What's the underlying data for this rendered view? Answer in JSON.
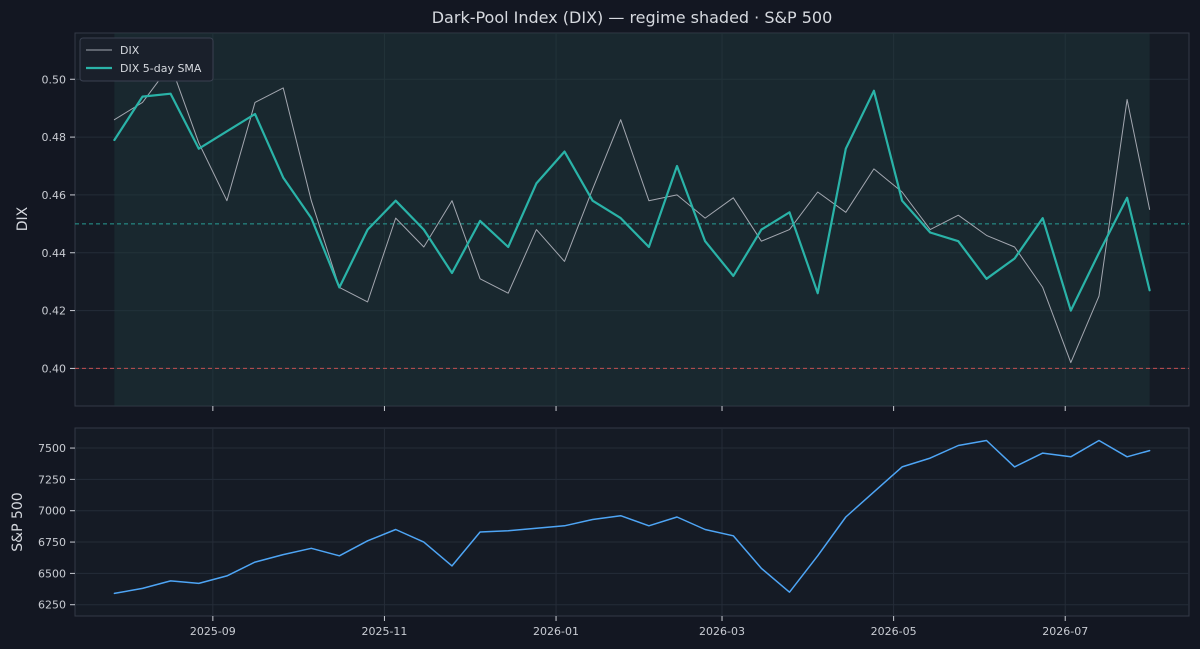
{
  "chart_data": [
    {
      "type": "line",
      "title": "Dark-Pool Index (DIX) — regime shaded · S&P 500",
      "ylabel": "DIX",
      "ylim": [
        0.387,
        0.516
      ],
      "yticks": [
        0.4,
        0.42,
        0.44,
        0.46,
        0.48,
        0.5
      ],
      "ytick_labels": [
        "0.40",
        "0.42",
        "0.44",
        "0.46",
        "0.48",
        "0.50"
      ],
      "reference_lines": [
        {
          "y": 0.45,
          "color": "#2ab3a8",
          "style": "dashed"
        },
        {
          "y": 0.4,
          "color": "#e05555",
          "style": "dashed"
        }
      ],
      "shaded_regime": {
        "from": "2025-07-28",
        "to": "2026-07-31"
      },
      "legend": {
        "placement": "top-left",
        "entries": [
          "DIX",
          "DIX 5-day SMA"
        ]
      },
      "grid": true,
      "x": [
        "2025-07-28",
        "2025-08-07",
        "2025-08-17",
        "2025-08-27",
        "2025-09-06",
        "2025-09-16",
        "2025-09-26",
        "2025-10-06",
        "2025-10-16",
        "2025-10-26",
        "2025-11-05",
        "2025-11-15",
        "2025-11-25",
        "2025-12-05",
        "2025-12-15",
        "2025-12-25",
        "2026-01-04",
        "2026-01-14",
        "2026-01-24",
        "2026-02-03",
        "2026-02-13",
        "2026-02-23",
        "2026-03-05",
        "2026-03-15",
        "2026-03-25",
        "2026-04-04",
        "2026-04-14",
        "2026-04-24",
        "2026-05-04",
        "2026-05-14",
        "2026-05-24",
        "2026-06-03",
        "2026-06-13",
        "2026-06-23",
        "2026-07-03",
        "2026-07-13",
        "2026-07-23",
        "2026-07-31"
      ],
      "series": [
        {
          "name": "DIX",
          "color": "#a3a7b0",
          "values": [
            0.486,
            0.492,
            0.505,
            0.478,
            0.458,
            0.492,
            0.497,
            0.458,
            0.428,
            0.423,
            0.452,
            0.442,
            0.458,
            0.431,
            0.426,
            0.448,
            0.437,
            0.462,
            0.486,
            0.458,
            0.46,
            0.452,
            0.459,
            0.444,
            0.448,
            0.461,
            0.454,
            0.469,
            0.461,
            0.448,
            0.453,
            0.446,
            0.442,
            0.428,
            0.402,
            0.425,
            0.493,
            0.455
          ]
        },
        {
          "name": "DIX 5-day SMA",
          "color": "#2ab3a8",
          "values": [
            0.479,
            0.494,
            0.495,
            0.476,
            0.482,
            0.488,
            0.466,
            0.452,
            0.428,
            0.448,
            0.458,
            0.448,
            0.433,
            0.451,
            0.442,
            0.464,
            0.475,
            0.458,
            0.452,
            0.442,
            0.47,
            0.444,
            0.432,
            0.448,
            0.454,
            0.426,
            0.476,
            0.496,
            0.458,
            0.447,
            0.444,
            0.431,
            0.438,
            0.452,
            0.42,
            0.44,
            0.459,
            0.427
          ]
        }
      ]
    },
    {
      "type": "line",
      "ylabel": "S&P 500",
      "ylim": [
        6160,
        7660
      ],
      "yticks": [
        6250,
        6500,
        6750,
        7000,
        7250,
        7500
      ],
      "ytick_labels": [
        "6250",
        "6500",
        "6750",
        "7000",
        "7250",
        "7500"
      ],
      "xtick_labels": [
        "2025-09",
        "2025-11",
        "2026-01",
        "2026-03",
        "2026-05",
        "2026-07"
      ],
      "xticks": [
        "2025-09-01",
        "2025-11-01",
        "2026-01-01",
        "2026-03-01",
        "2026-05-01",
        "2026-07-01"
      ],
      "grid": true,
      "x": [
        "2025-07-28",
        "2025-08-07",
        "2025-08-17",
        "2025-08-27",
        "2025-09-06",
        "2025-09-16",
        "2025-09-26",
        "2025-10-06",
        "2025-10-16",
        "2025-10-26",
        "2025-11-05",
        "2025-11-15",
        "2025-11-25",
        "2025-12-05",
        "2025-12-15",
        "2025-12-25",
        "2026-01-04",
        "2026-01-14",
        "2026-01-24",
        "2026-02-03",
        "2026-02-13",
        "2026-02-23",
        "2026-03-05",
        "2026-03-15",
        "2026-03-25",
        "2026-04-04",
        "2026-04-14",
        "2026-04-24",
        "2026-05-04",
        "2026-05-14",
        "2026-05-24",
        "2026-06-03",
        "2026-06-13",
        "2026-06-23",
        "2026-07-03",
        "2026-07-13",
        "2026-07-23",
        "2026-07-31"
      ],
      "series": [
        {
          "name": "S&P 500",
          "color": "#4ea5f5",
          "values": [
            6340,
            6380,
            6440,
            6420,
            6480,
            6590,
            6650,
            6700,
            6640,
            6760,
            6850,
            6750,
            6560,
            6830,
            6840,
            6860,
            6880,
            6930,
            6960,
            6880,
            6950,
            6850,
            6800,
            6540,
            6350,
            6640,
            6950,
            7150,
            7350,
            7420,
            7520,
            7560,
            7350,
            7460,
            7430,
            7560,
            7430,
            7480
          ]
        }
      ]
    }
  ]
}
